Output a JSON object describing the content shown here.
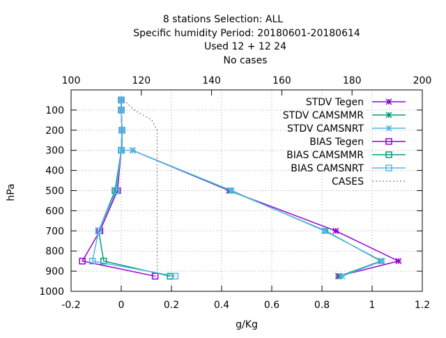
{
  "title_lines": [
    "8 stations Selection: ALL",
    "Specific humidity  Period: 20180601-20180614",
    "Used  12 + 12 24",
    "No cases"
  ],
  "chart_data": {
    "type": "line",
    "xlabel": "g/Kg",
    "ylabel": "hPa",
    "xlim": [
      -0.2,
      1.2
    ],
    "ylim": [
      1000,
      0
    ],
    "x_ticks": [
      "-0.2",
      "0",
      "0.2",
      "0.4",
      "0.6",
      "0.8",
      "1",
      "1.2"
    ],
    "x_tick_values": [
      -0.2,
      0,
      0.2,
      0.4,
      0.6,
      0.8,
      1,
      1.2
    ],
    "y_ticks": [
      "100",
      "200",
      "300",
      "400",
      "500",
      "600",
      "700",
      "800",
      "900",
      "1000"
    ],
    "y_tick_values": [
      100,
      200,
      300,
      400,
      500,
      600,
      700,
      800,
      900,
      1000
    ],
    "x2lim": [
      100,
      200
    ],
    "x2_ticks": [
      "100",
      "120",
      "140",
      "160",
      "180",
      "200"
    ],
    "x2_tick_values": [
      100,
      120,
      140,
      160,
      180,
      200
    ],
    "grid": true,
    "legend_position": "top-right",
    "series": [
      {
        "name": "STDV Tegen",
        "color": "#9400d3",
        "marker": "star",
        "line": "solid",
        "x": [
          0.0,
          0.0,
          0.003,
          0.003,
          0.045,
          0.43,
          0.855,
          1.105,
          0.865
        ],
        "y": [
          50,
          100,
          200,
          300,
          300,
          500,
          700,
          850,
          925
        ]
      },
      {
        "name": "STDV CAMSMMR",
        "color": "#009e73",
        "marker": "star",
        "line": "solid",
        "x": [
          0.0,
          0.0,
          0.003,
          0.003,
          0.045,
          0.435,
          0.815,
          1.035,
          0.87
        ],
        "y": [
          50,
          100,
          200,
          300,
          300,
          500,
          700,
          850,
          925
        ]
      },
      {
        "name": "STDV CAMSNRT",
        "color": "#56b4e9",
        "marker": "star",
        "line": "solid",
        "x": [
          0.0,
          0.0,
          0.003,
          0.003,
          0.045,
          0.44,
          0.81,
          1.04,
          0.88
        ],
        "y": [
          50,
          100,
          200,
          300,
          300,
          500,
          700,
          850,
          925
        ]
      },
      {
        "name": "BIAS Tegen",
        "color": "#9400d3",
        "marker": "square",
        "line": "solid",
        "x": [
          0.0,
          0.0,
          0.003,
          0.0,
          -0.015,
          -0.085,
          -0.155,
          0.135
        ],
        "y": [
          50,
          100,
          200,
          300,
          500,
          700,
          850,
          925
        ]
      },
      {
        "name": "BIAS CAMSMMR",
        "color": "#009e73",
        "marker": "square",
        "line": "solid",
        "x": [
          0.0,
          0.0,
          0.003,
          0.0,
          -0.025,
          -0.09,
          -0.07,
          0.195
        ],
        "y": [
          50,
          100,
          200,
          300,
          500,
          700,
          850,
          925
        ]
      },
      {
        "name": "BIAS CAMSNRT",
        "color": "#56b4e9",
        "marker": "square",
        "line": "solid",
        "x": [
          0.0,
          0.0,
          0.003,
          0.0,
          -0.02,
          -0.09,
          -0.115,
          0.215
        ],
        "y": [
          50,
          100,
          200,
          300,
          500,
          700,
          850,
          925
        ]
      },
      {
        "name": "CASES",
        "color": "#909090",
        "marker": "none",
        "line": "dotted",
        "axis": "x2",
        "x": [
          115,
          118,
          123,
          124.5,
          124.5,
          124.5,
          124.5,
          124.5,
          124.5,
          124
        ],
        "y": [
          50,
          100,
          150,
          200,
          300,
          500,
          700,
          850,
          900,
          925
        ]
      }
    ]
  }
}
